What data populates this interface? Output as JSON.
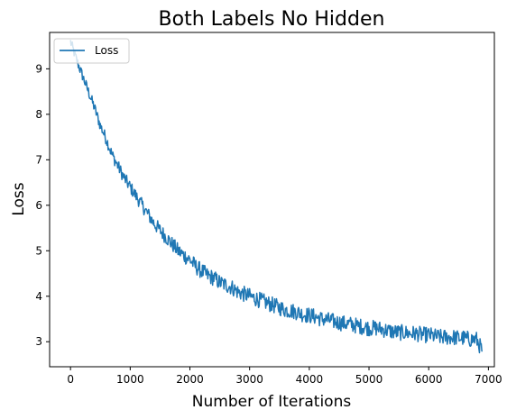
{
  "chart_data": {
    "type": "line",
    "title": "Both Labels No Hidden",
    "xlabel": "Number of Iterations",
    "ylabel": "Loss",
    "xlim": [
      -350,
      7100
    ],
    "ylim": [
      2.45,
      9.8
    ],
    "xticks": [
      0,
      1000,
      2000,
      3000,
      4000,
      5000,
      6000,
      7000
    ],
    "yticks": [
      3,
      4,
      5,
      6,
      7,
      8,
      9
    ],
    "grid": false,
    "legend": {
      "position": "top-left",
      "entries": [
        "Loss"
      ]
    },
    "series": [
      {
        "name": "Loss",
        "color": "#1f77b4",
        "x": [
          0,
          100,
          200,
          300,
          400,
          500,
          600,
          700,
          800,
          900,
          1000,
          1100,
          1200,
          1300,
          1400,
          1500,
          1600,
          1700,
          1800,
          1900,
          2000,
          2100,
          2200,
          2300,
          2400,
          2500,
          2600,
          2700,
          2800,
          2900,
          3000,
          3100,
          3200,
          3300,
          3400,
          3500,
          3600,
          3700,
          3800,
          3900,
          4000,
          4100,
          4200,
          4300,
          4400,
          4500,
          4600,
          4700,
          4800,
          4900,
          5000,
          5100,
          5200,
          5300,
          5400,
          5500,
          5600,
          5700,
          5800,
          5900,
          6000,
          6100,
          6200,
          6300,
          6400,
          6500,
          6600,
          6700,
          6800,
          6900
        ],
        "y": [
          9.6,
          9.2,
          8.85,
          8.5,
          8.15,
          7.75,
          7.45,
          7.1,
          6.85,
          6.6,
          6.4,
          6.2,
          6.0,
          5.8,
          5.6,
          5.45,
          5.3,
          5.15,
          5.0,
          4.9,
          4.8,
          4.65,
          4.55,
          4.45,
          4.4,
          4.3,
          4.25,
          4.2,
          4.1,
          4.05,
          4.0,
          3.95,
          3.9,
          3.85,
          3.8,
          3.75,
          3.7,
          3.68,
          3.65,
          3.6,
          3.58,
          3.55,
          3.5,
          3.48,
          3.45,
          3.42,
          3.4,
          3.38,
          3.35,
          3.33,
          3.3,
          3.3,
          3.28,
          3.25,
          3.22,
          3.2,
          3.2,
          3.18,
          3.18,
          3.15,
          3.15,
          3.12,
          3.1,
          3.1,
          3.1,
          3.08,
          3.08,
          3.05,
          3.05,
          2.8
        ]
      }
    ]
  }
}
